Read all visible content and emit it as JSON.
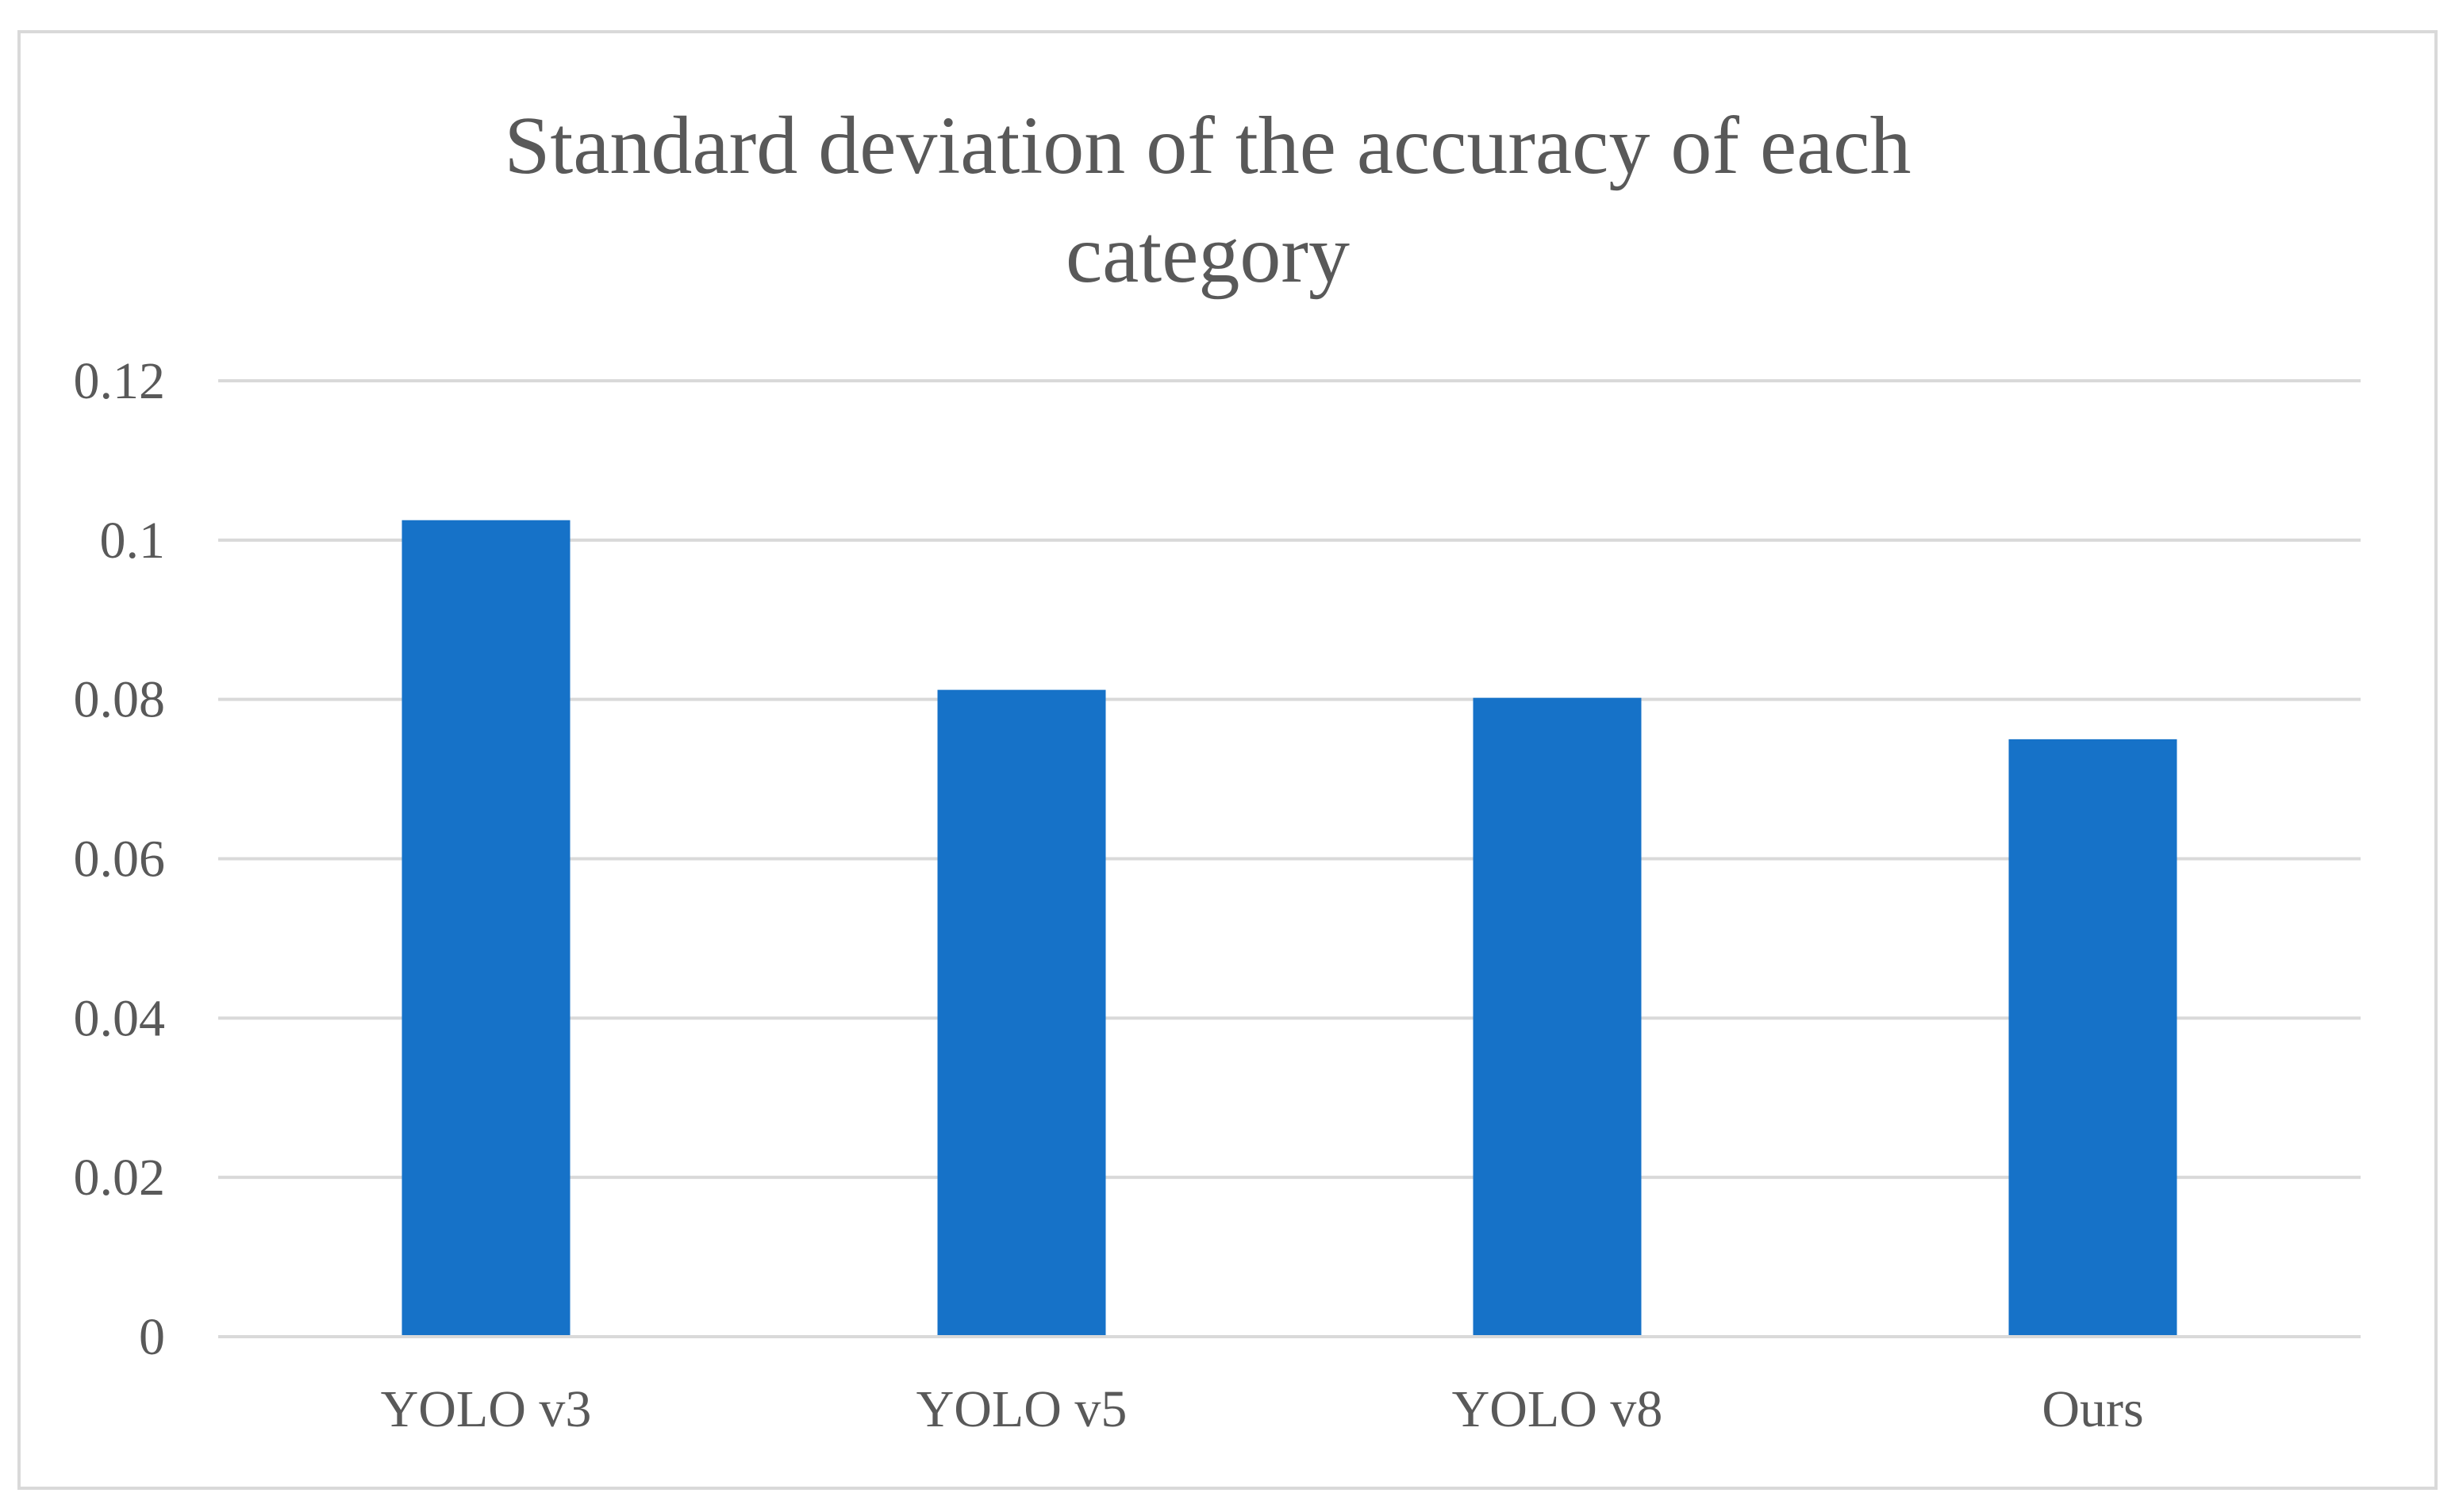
{
  "chart_data": {
    "type": "bar",
    "title_lines": [
      "Standard deviation of the accuracy of each",
      "category"
    ],
    "categories": [
      "YOLO v3",
      "YOLO v5",
      "YOLO v8",
      "Ours"
    ],
    "values": [
      0.1025,
      0.0812,
      0.0802,
      0.075
    ],
    "ylim": [
      0,
      0.12
    ],
    "yticks": [
      "0",
      "0.02",
      "0.04",
      "0.06",
      "0.08",
      "0.1",
      "0.12"
    ],
    "ytick_values": [
      0,
      0.02,
      0.04,
      0.06,
      0.08,
      0.1,
      0.12
    ],
    "xlabel": "",
    "ylabel": "",
    "grid": true,
    "legend": "none",
    "bar_color": "#1672c8",
    "grid_color": "#d9d9d9",
    "text_color": "#595959"
  }
}
